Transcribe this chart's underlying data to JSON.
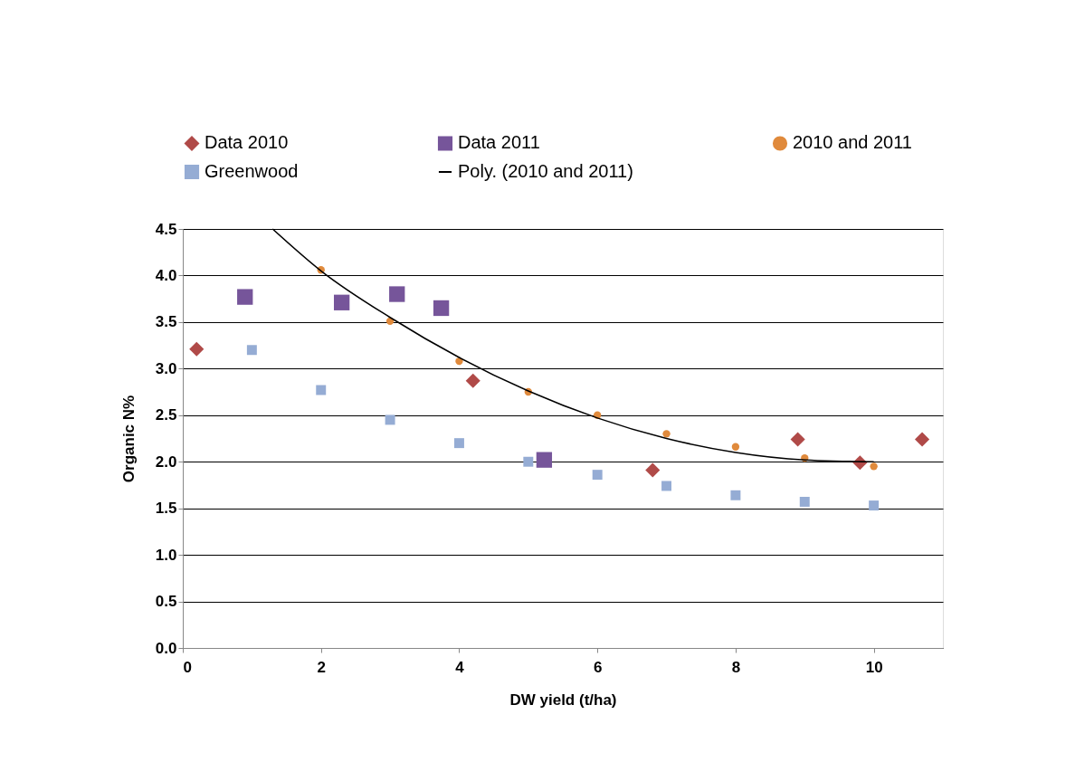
{
  "chart_data": {
    "type": "scatter",
    "xlabel": "DW yield (t/ha)",
    "ylabel": "Organic N%",
    "xlim": [
      0,
      11
    ],
    "xticks": [
      0,
      2,
      4,
      6,
      8,
      10
    ],
    "ylim": [
      0,
      4.5
    ],
    "yticks": [
      {
        "value": 0,
        "label": "0.0"
      },
      {
        "value": 0.5,
        "label": "0.5"
      },
      {
        "value": 1,
        "label": "1.0"
      },
      {
        "value": 1.5,
        "label": "1.5"
      },
      {
        "value": 2,
        "label": "2.0"
      },
      {
        "value": 2.5,
        "label": "2.5"
      },
      {
        "value": 3,
        "label": "3.0"
      },
      {
        "value": 3.5,
        "label": "3.5"
      },
      {
        "value": 4,
        "label": "4.0"
      },
      {
        "value": 4.5,
        "label": "4.5"
      }
    ],
    "grid": "y",
    "legend": "top",
    "series": [
      {
        "name": "Data 2010",
        "color": "#b04a48",
        "marker": "diamond",
        "x": [
          0.2,
          4.2,
          6.8,
          8.9,
          9.8,
          10.7
        ],
        "values": [
          3.21,
          2.87,
          1.91,
          2.24,
          1.99,
          2.24
        ]
      },
      {
        "name": "Data 2011",
        "color": "#76559a",
        "marker": "square",
        "x": [
          0.9,
          2.3,
          3.1,
          3.74,
          5.23
        ],
        "values": [
          3.77,
          3.71,
          3.8,
          3.65,
          2.02
        ]
      },
      {
        "name": "2010 and 2011",
        "color": "#e08a3c",
        "marker": "circle",
        "x": [
          2,
          3,
          4,
          5,
          6,
          7,
          8,
          9,
          10
        ],
        "values": [
          4.06,
          3.51,
          3.08,
          2.75,
          2.5,
          2.3,
          2.16,
          2.04,
          1.95
        ]
      },
      {
        "name": "Greenwood",
        "color": "#95acd4",
        "marker": "square",
        "x": [
          1,
          2,
          3,
          4,
          5,
          6,
          7,
          8,
          9,
          10
        ],
        "values": [
          3.2,
          2.77,
          2.45,
          2.2,
          2.0,
          1.86,
          1.74,
          1.64,
          1.57,
          1.53
        ]
      },
      {
        "name": "Poly. (2010 and 2011)",
        "color": "#000000",
        "type": "line",
        "marker": "none",
        "line_style": "solid",
        "x": [
          1.3,
          2,
          3,
          4,
          5,
          6,
          7,
          8,
          9,
          10
        ],
        "values": [
          4.5,
          4.05,
          3.55,
          3.12,
          2.76,
          2.47,
          2.25,
          2.1,
          2.02,
          2.0
        ]
      }
    ]
  }
}
